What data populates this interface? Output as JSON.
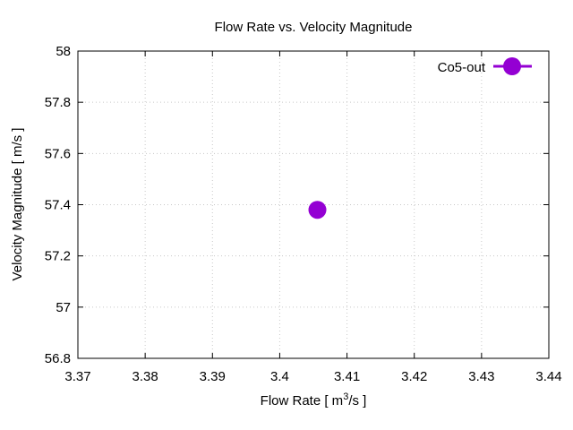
{
  "chart_data": {
    "type": "scatter",
    "title": "Flow Rate vs. Velocity Magnitude",
    "xlabel_main": "Flow Rate [ m",
    "xlabel_sup": "3",
    "xlabel_tail": "/s ]",
    "ylabel": "Velocity Magnitude [ m/s ]",
    "xlim": [
      3.37,
      3.44
    ],
    "ylim": [
      56.8,
      58
    ],
    "xticks": [
      3.37,
      3.38,
      3.39,
      3.4,
      3.41,
      3.42,
      3.43,
      3.44
    ],
    "xtick_labels": [
      "3.37",
      "3.38",
      "3.39",
      "3.4",
      "3.41",
      "3.42",
      "3.43",
      "3.44"
    ],
    "yticks": [
      56.8,
      57,
      57.2,
      57.4,
      57.6,
      57.8,
      58
    ],
    "ytick_labels": [
      "56.8",
      "57",
      "57.2",
      "57.4",
      "57.6",
      "57.8",
      "58"
    ],
    "grid": true,
    "legend_position": "top-right",
    "series": [
      {
        "name": "Co5-out",
        "color": "#9400d3",
        "points": [
          {
            "x": 3.4056,
            "y": 57.38
          }
        ]
      }
    ]
  }
}
